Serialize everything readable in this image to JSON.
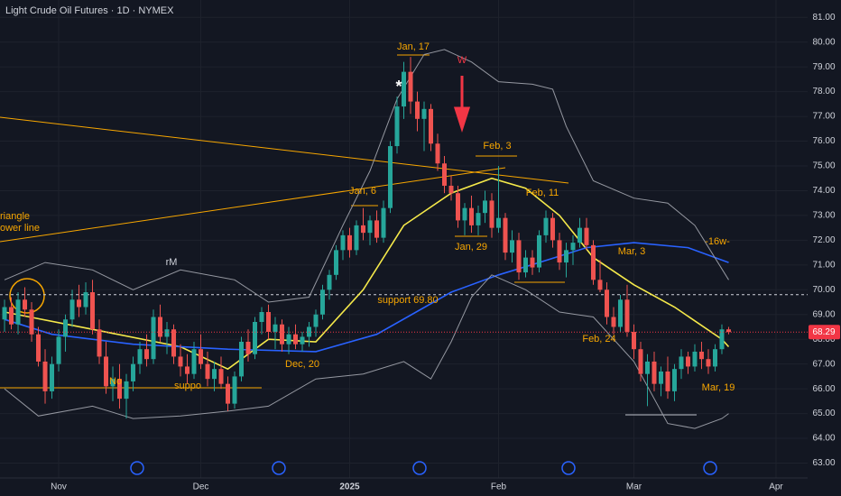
{
  "chart_data": {
    "type": "candlestick",
    "title": "Light Crude Oil Futures · 1D · NYMEX",
    "up_color": "#26a69a",
    "down_color": "#ef5350",
    "candles": [
      [
        68.8,
        69.6,
        68.3,
        69.3
      ],
      [
        69.3,
        69.7,
        68.4,
        68.6
      ],
      [
        68.6,
        69.9,
        68.2,
        69.6
      ],
      [
        69.6,
        70.1,
        68.9,
        69.2
      ],
      [
        69.2,
        69.5,
        67.9,
        68.2
      ],
      [
        68.2,
        68.5,
        66.9,
        67.1
      ],
      [
        67.1,
        67.6,
        65.4,
        65.9
      ],
      [
        65.9,
        67.3,
        65.6,
        67.0
      ],
      [
        67.0,
        68.4,
        66.7,
        68.1
      ],
      [
        68.1,
        69.0,
        67.5,
        68.8
      ],
      [
        68.8,
        70.0,
        68.5,
        69.6
      ],
      [
        69.6,
        70.2,
        68.9,
        69.3
      ],
      [
        69.3,
        70.3,
        69.0,
        69.9
      ],
      [
        69.9,
        70.4,
        68.2,
        68.4
      ],
      [
        68.4,
        68.8,
        67.0,
        67.3
      ],
      [
        67.3,
        67.9,
        65.8,
        66.1
      ],
      [
        66.1,
        66.9,
        65.5,
        66.4
      ],
      [
        66.4,
        67.0,
        65.2,
        65.6
      ],
      [
        65.6,
        66.6,
        64.8,
        66.3
      ],
      [
        66.3,
        67.3,
        65.9,
        67.0
      ],
      [
        67.0,
        67.9,
        66.6,
        67.6
      ],
      [
        67.6,
        68.2,
        66.9,
        67.2
      ],
      [
        67.2,
        69.2,
        67.0,
        68.9
      ],
      [
        68.9,
        69.4,
        67.9,
        68.1
      ],
      [
        68.1,
        68.7,
        67.4,
        68.4
      ],
      [
        68.4,
        68.6,
        67.0,
        67.3
      ],
      [
        67.3,
        67.8,
        66.5,
        66.9
      ],
      [
        66.9,
        67.4,
        66.2,
        66.6
      ],
      [
        66.6,
        67.9,
        66.4,
        67.6
      ],
      [
        67.6,
        68.2,
        66.8,
        67.0
      ],
      [
        67.0,
        67.5,
        66.1,
        66.4
      ],
      [
        66.4,
        67.1,
        65.9,
        66.8
      ],
      [
        66.8,
        67.3,
        66.0,
        66.2
      ],
      [
        66.2,
        66.5,
        65.1,
        65.4
      ],
      [
        65.4,
        66.7,
        65.2,
        66.5
      ],
      [
        66.5,
        68.1,
        66.3,
        67.9
      ],
      [
        67.9,
        68.4,
        67.1,
        67.4
      ],
      [
        67.4,
        68.9,
        67.2,
        68.7
      ],
      [
        68.7,
        69.3,
        68.2,
        69.1
      ],
      [
        69.1,
        69.4,
        68.0,
        68.3
      ],
      [
        68.3,
        68.9,
        67.6,
        68.6
      ],
      [
        68.6,
        68.8,
        67.5,
        67.8
      ],
      [
        67.8,
        68.5,
        67.4,
        68.2
      ],
      [
        68.2,
        68.6,
        67.6,
        67.8
      ],
      [
        67.8,
        68.3,
        67.5,
        68.1
      ],
      [
        68.1,
        68.7,
        67.7,
        68.5
      ],
      [
        68.5,
        69.2,
        68.1,
        69.0
      ],
      [
        69.0,
        70.2,
        68.8,
        70.0
      ],
      [
        70.0,
        70.8,
        69.6,
        70.6
      ],
      [
        70.6,
        71.8,
        70.4,
        71.6
      ],
      [
        71.6,
        72.4,
        71.2,
        72.2
      ],
      [
        72.2,
        72.5,
        71.3,
        71.6
      ],
      [
        71.6,
        72.8,
        71.4,
        72.6
      ],
      [
        72.6,
        73.3,
        72.0,
        72.3
      ],
      [
        72.3,
        73.0,
        71.8,
        72.8
      ],
      [
        72.8,
        73.2,
        71.9,
        72.1
      ],
      [
        72.1,
        73.6,
        71.9,
        73.3
      ],
      [
        73.3,
        76.0,
        73.1,
        75.8
      ],
      [
        75.8,
        77.8,
        75.5,
        77.4
      ],
      [
        77.4,
        79.2,
        76.9,
        78.8
      ],
      [
        78.8,
        79.4,
        77.1,
        77.6
      ],
      [
        77.6,
        78.0,
        76.4,
        76.9
      ],
      [
        76.9,
        77.6,
        75.6,
        77.3
      ],
      [
        77.3,
        77.5,
        75.6,
        75.9
      ],
      [
        75.9,
        76.3,
        74.8,
        75.1
      ],
      [
        75.1,
        75.4,
        73.9,
        74.2
      ],
      [
        74.2,
        74.6,
        73.6,
        73.9
      ],
      [
        73.9,
        74.2,
        72.5,
        72.8
      ],
      [
        72.8,
        73.5,
        72.2,
        73.3
      ],
      [
        73.3,
        73.8,
        72.3,
        72.6
      ],
      [
        72.6,
        73.4,
        72.2,
        73.1
      ],
      [
        73.1,
        74.0,
        72.7,
        73.6
      ],
      [
        73.6,
        73.9,
        72.1,
        72.5
      ],
      [
        72.5,
        75.0,
        72.3,
        72.9
      ],
      [
        72.9,
        73.1,
        71.2,
        71.5
      ],
      [
        71.5,
        72.4,
        71.1,
        72.0
      ],
      [
        72.0,
        72.3,
        70.4,
        70.7
      ],
      [
        70.7,
        71.6,
        70.5,
        71.3
      ],
      [
        71.3,
        71.6,
        70.6,
        70.9
      ],
      [
        70.9,
        72.4,
        70.7,
        72.2
      ],
      [
        72.2,
        73.2,
        71.9,
        72.9
      ],
      [
        72.9,
        73.1,
        71.7,
        72.0
      ],
      [
        72.0,
        72.3,
        70.8,
        71.1
      ],
      [
        71.1,
        71.9,
        70.5,
        71.6
      ],
      [
        71.6,
        72.2,
        71.0,
        71.9
      ],
      [
        71.9,
        72.9,
        71.7,
        72.5
      ],
      [
        72.5,
        72.9,
        71.6,
        71.8
      ],
      [
        71.8,
        72.0,
        70.2,
        70.4
      ],
      [
        70.4,
        71.2,
        69.9,
        70.0
      ],
      [
        70.0,
        70.3,
        68.6,
        68.9
      ],
      [
        68.9,
        69.3,
        68.2,
        68.5
      ],
      [
        68.5,
        69.8,
        68.3,
        69.6
      ],
      [
        69.6,
        70.2,
        68.1,
        68.3
      ],
      [
        68.3,
        68.6,
        67.2,
        67.6
      ],
      [
        67.6,
        67.9,
        66.3,
        66.6
      ],
      [
        66.6,
        67.4,
        65.3,
        67.1
      ],
      [
        67.1,
        67.5,
        65.9,
        66.2
      ],
      [
        66.2,
        66.9,
        65.7,
        66.7
      ],
      [
        66.7,
        67.3,
        65.6,
        65.9
      ],
      [
        65.9,
        67.0,
        65.5,
        66.8
      ],
      [
        66.8,
        67.6,
        66.4,
        67.3
      ],
      [
        67.3,
        67.5,
        66.6,
        66.9
      ],
      [
        66.9,
        67.8,
        66.7,
        67.5
      ],
      [
        67.5,
        67.9,
        66.8,
        67.2
      ],
      [
        67.2,
        67.6,
        66.6,
        66.9
      ],
      [
        66.9,
        67.8,
        66.7,
        67.6
      ],
      [
        67.6,
        68.6,
        67.4,
        68.4
      ],
      [
        68.4,
        68.5,
        68.2,
        68.29
      ]
    ],
    "last_close_label": "68.29",
    "lines": [
      {
        "color": "#f5e94a",
        "x": [
          0,
          13,
          26,
          33,
          39,
          46,
          53,
          59,
          66,
          72,
          77,
          82,
          87,
          93,
          99,
          106,
          107
        ],
        "values": [
          69.1,
          68.4,
          67.7,
          66.8,
          68.0,
          67.9,
          70.0,
          72.6,
          73.9,
          74.5,
          74.1,
          73.0,
          71.3,
          70.2,
          69.3,
          68.0,
          67.7
        ]
      },
      {
        "color": "#2962ff",
        "x": [
          0,
          7,
          19,
          33,
          46,
          55,
          66,
          73,
          79,
          86,
          93,
          101,
          107
        ],
        "values": [
          68.8,
          68.2,
          67.8,
          67.6,
          67.5,
          68.2,
          69.9,
          70.6,
          71.1,
          71.7,
          71.9,
          71.7,
          71.1
        ]
      },
      {
        "color": "#9598a1",
        "x": [
          0,
          6,
          13,
          19,
          26,
          34,
          39,
          45,
          50,
          54,
          58,
          62,
          65,
          69,
          73,
          78,
          81,
          83,
          87,
          93,
          98,
          102,
          107
        ],
        "values": [
          70.4,
          71.1,
          70.8,
          70.0,
          70.8,
          70.4,
          69.5,
          69.7,
          72.6,
          74.8,
          77.7,
          79.5,
          79.7,
          79.2,
          78.4,
          78.3,
          78.1,
          76.6,
          74.4,
          73.7,
          73.5,
          72.6,
          70.4
        ]
      },
      {
        "color": "#9598a1",
        "x": [
          0,
          5,
          13,
          19,
          26,
          33,
          39,
          46,
          53,
          59,
          63,
          66,
          69,
          72,
          77,
          82,
          87,
          93,
          98,
          102,
          106,
          107
        ],
        "values": [
          66.0,
          64.9,
          65.3,
          64.8,
          64.9,
          65.1,
          65.3,
          66.4,
          66.6,
          67.1,
          66.4,
          67.9,
          69.7,
          70.6,
          70.0,
          69.1,
          68.9,
          67.1,
          64.6,
          64.4,
          64.8,
          65.0
        ]
      }
    ],
    "support_level": 69.8,
    "annotations": [
      "Jan, 17",
      "W",
      "*",
      "Feb, 3",
      "Jan, 6",
      "Feb, 11",
      "Jan, 29",
      "-16w-",
      "Mar, 3",
      "rM",
      "support 69.80",
      "Feb, 24",
      "Dec, 20",
      "Mar, 19",
      "riangle",
      "ower line",
      "No",
      "suppo"
    ],
    "xlim": [
      -0.67,
      118.67
    ],
    "xticks": [
      {
        "value": 8,
        "label": "Nov"
      },
      {
        "value": 29,
        "label": "Dec"
      },
      {
        "value": 51,
        "label": "2025"
      },
      {
        "value": 73,
        "label": "Feb"
      },
      {
        "value": 93,
        "label": "Mar"
      },
      {
        "value": 114,
        "label": "Apr"
      }
    ],
    "ylim": [
      62.4,
      81.7
    ],
    "yticks": [
      {
        "value": 63,
        "label": "63.00"
      },
      {
        "value": 64,
        "label": "64.00"
      },
      {
        "value": 65,
        "label": "65.00"
      },
      {
        "value": 66,
        "label": "66.00"
      },
      {
        "value": 67,
        "label": "67.00"
      },
      {
        "value": 68,
        "label": "68.00"
      },
      {
        "value": 69,
        "label": "69.00"
      },
      {
        "value": 70,
        "label": "70.00"
      },
      {
        "value": 71,
        "label": "71.00"
      },
      {
        "value": 72,
        "label": "72.00"
      },
      {
        "value": 73,
        "label": "73.00"
      },
      {
        "value": 74,
        "label": "74.00"
      },
      {
        "value": 75,
        "label": "75.00"
      },
      {
        "value": 76,
        "label": "76.00"
      },
      {
        "value": 77,
        "label": "77.00"
      },
      {
        "value": 78,
        "label": "78.00"
      },
      {
        "value": 79,
        "label": "79.00"
      },
      {
        "value": 80,
        "label": "80.00"
      },
      {
        "value": 81,
        "label": "81.00"
      }
    ],
    "grid": true
  }
}
